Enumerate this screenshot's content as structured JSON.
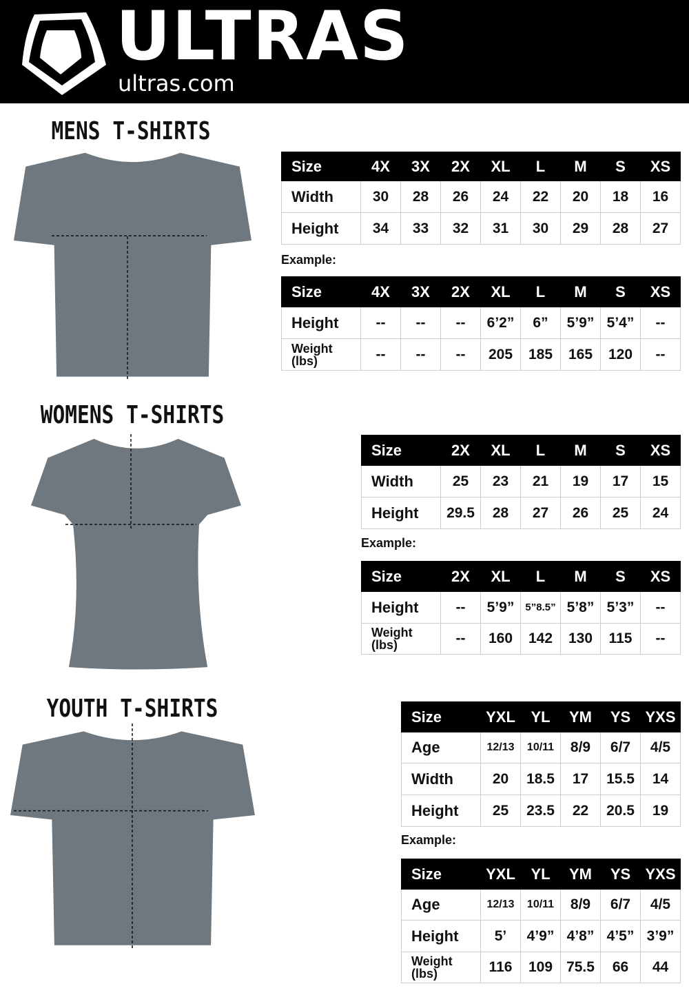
{
  "header": {
    "brand": "ULTRAS",
    "url": "ultras.com",
    "logo_icon": "shield-logo-icon"
  },
  "shirt_color": "#6e787e",
  "sections": [
    {
      "id": "mens",
      "title": "MENS T-SHIRTS",
      "example_label": "Example:",
      "measure": {
        "rows": [
          [
            "Size",
            "4X",
            "3X",
            "2X",
            "XL",
            "L",
            "M",
            "S",
            "XS"
          ],
          [
            "Width",
            "30",
            "28",
            "26",
            "24",
            "22",
            "20",
            "18",
            "16"
          ],
          [
            "Height",
            "34",
            "33",
            "32",
            "31",
            "30",
            "29",
            "28",
            "27"
          ]
        ]
      },
      "example": {
        "rows": [
          [
            "Size",
            "4X",
            "3X",
            "2X",
            "XL",
            "L",
            "M",
            "S",
            "XS"
          ],
          [
            "Height",
            "--",
            "--",
            "--",
            "6’2”",
            "6”",
            "5’9”",
            "5’4”",
            "--"
          ],
          [
            "Weight (lbs)",
            "--",
            "--",
            "--",
            "205",
            "185",
            "165",
            "120",
            "--"
          ]
        ]
      }
    },
    {
      "id": "womens",
      "title": "WOMENS T-SHIRTS",
      "example_label": "Example:",
      "measure": {
        "rows": [
          [
            "Size",
            "2X",
            "XL",
            "L",
            "M",
            "S",
            "XS"
          ],
          [
            "Width",
            "25",
            "23",
            "21",
            "19",
            "17",
            "15"
          ],
          [
            "Height",
            "29.5",
            "28",
            "27",
            "26",
            "25",
            "24"
          ]
        ]
      },
      "example": {
        "rows": [
          [
            "Size",
            "2X",
            "XL",
            "L",
            "M",
            "S",
            "XS"
          ],
          [
            "Height",
            "--",
            "5’9”",
            "5”8.5”",
            "5’8”",
            "5’3”",
            "--"
          ],
          [
            "Weight (lbs)",
            "--",
            "160",
            "142",
            "130",
            "115",
            "--"
          ]
        ]
      }
    },
    {
      "id": "youth",
      "title": "YOUTH T-SHIRTS",
      "example_label": "Example:",
      "measure": {
        "rows": [
          [
            "Size",
            "YXL",
            "YL",
            "YM",
            "YS",
            "YXS"
          ],
          [
            "Age",
            "12/13",
            "10/11",
            "8/9",
            "6/7",
            "4/5"
          ],
          [
            "Width",
            "20",
            "18.5",
            "17",
            "15.5",
            "14"
          ],
          [
            "Height",
            "25",
            "23.5",
            "22",
            "20.5",
            "19"
          ]
        ]
      },
      "example": {
        "rows": [
          [
            "Size",
            "YXL",
            "YL",
            "YM",
            "YS",
            "YXS"
          ],
          [
            "Age",
            "12/13",
            "10/11",
            "8/9",
            "6/7",
            "4/5"
          ],
          [
            "Height",
            "5’",
            "4’9”",
            "4’8”",
            "4’5”",
            "3’9”"
          ],
          [
            "Weight (lbs)",
            "116",
            "109",
            "75.5",
            "66",
            "44"
          ]
        ]
      }
    }
  ]
}
